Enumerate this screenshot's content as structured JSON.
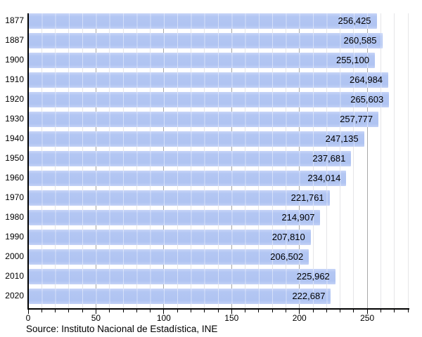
{
  "chart_data": {
    "type": "bar",
    "orientation": "horizontal",
    "title": "",
    "categories": [
      "1877",
      "1887",
      "1900",
      "1910",
      "1920",
      "1930",
      "1940",
      "1950",
      "1960",
      "1970",
      "1980",
      "1990",
      "2000",
      "2010",
      "2020"
    ],
    "values": [
      256425,
      260585,
      255100,
      264984,
      265603,
      257777,
      247135,
      237681,
      234014,
      221761,
      214907,
      207810,
      206502,
      225962,
      222687
    ],
    "value_labels": [
      "256,425",
      "260,585",
      "255,100",
      "264,984",
      "265,603",
      "257,777",
      "247,135",
      "237,681",
      "234,014",
      "221,761",
      "214,907",
      "207,810",
      "206,502",
      "225,962",
      "222,687"
    ],
    "x_ticks": [
      0,
      50,
      100,
      150,
      200,
      250
    ],
    "x_max": 280,
    "x_minor_step": 10,
    "x_unit": "thousands",
    "grid": "on",
    "legend": "none",
    "source": "Source: Instituto Nacional de Estadística, INE",
    "colors": {
      "bar": "#b3c6f2",
      "axis": "#000000",
      "grid_minor": "#e5e5e8",
      "grid_major": "#a8a8a8",
      "label": "#000000"
    }
  }
}
